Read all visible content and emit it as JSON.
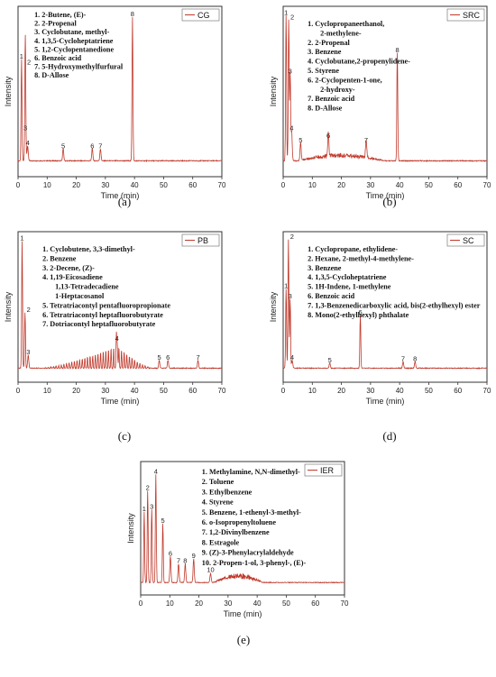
{
  "colors": {
    "trace": "#c0392b",
    "frame": "#333333"
  },
  "chart_data": [
    {
      "id": "a",
      "caption": "(a)",
      "legend": "CG",
      "type": "line",
      "xlabel": "Time (min)",
      "ylabel": "Intensity",
      "xlim": [
        0,
        70
      ],
      "xticks": [
        "0",
        "10",
        "20",
        "30",
        "40",
        "50",
        "60",
        "70"
      ],
      "compounds": [
        "1.  2-Butene, (E)-",
        "2.  2-Propenal",
        "3.  Cyclobutane, methyl-",
        "4.  1,3,5-Cycloheptatriene",
        "5.  1,2-Cyclopentanedione",
        "6.  Benzoic acid",
        "7.  5-Hydroxymethylfurfural",
        "8.  D-Allose"
      ],
      "peaks": [
        {
          "label": "1",
          "x": 1.2,
          "y": 0.68
        },
        {
          "label": "2",
          "x": 2.5,
          "y": 0.64
        },
        {
          "label": "3",
          "x": 2.5,
          "y": 0.2
        },
        {
          "label": "4",
          "x": 3.3,
          "y": 0.1
        },
        {
          "label": "5",
          "x": 15.5,
          "y": 0.08
        },
        {
          "label": "6",
          "x": 25.5,
          "y": 0.08
        },
        {
          "label": "7",
          "x": 28.3,
          "y": 0.08
        },
        {
          "label": "8",
          "x": 39.3,
          "y": 0.96
        }
      ],
      "bumps": []
    },
    {
      "id": "b",
      "caption": "(b)",
      "legend": "SRC",
      "type": "line",
      "xlabel": "Time (min)",
      "ylabel": "Intensity",
      "xlim": [
        0,
        70
      ],
      "xticks": [
        "0",
        "10",
        "20",
        "30",
        "40",
        "50",
        "60",
        "70"
      ],
      "compounds": [
        "1.  Cyclopropaneethanol,",
        "2-methylene-",
        "2.  2-Propenal",
        "3.  Benzene",
        "4.  Cyclobutane,2-propenylidene-",
        "5.  Styrene",
        "6.  2-Cyclopenten-1-one,",
        "2-hydroxy-",
        "7.  Benzoic acid",
        "8.  D-Allose"
      ],
      "peaks": [
        {
          "label": "1",
          "x": 1.0,
          "y": 0.97
        },
        {
          "label": "2",
          "x": 1.9,
          "y": 0.94
        },
        {
          "label": "3",
          "x": 2.4,
          "y": 0.58
        },
        {
          "label": "4",
          "x": 2.9,
          "y": 0.2
        },
        {
          "label": "5",
          "x": 6.0,
          "y": 0.12
        },
        {
          "label": "6",
          "x": 15.5,
          "y": 0.15
        },
        {
          "label": "7",
          "x": 28.5,
          "y": 0.12
        },
        {
          "label": "8",
          "x": 39.2,
          "y": 0.72
        }
      ],
      "bumps": [
        {
          "from": 5,
          "to": 35,
          "amp": 0.05
        }
      ]
    },
    {
      "id": "c",
      "caption": "(c)",
      "legend": "PB",
      "type": "line",
      "xlabel": "Time (min)",
      "ylabel": "Intensity",
      "xlim": [
        0,
        70
      ],
      "xticks": [
        "0",
        "10",
        "20",
        "30",
        "40",
        "50",
        "60",
        "70"
      ],
      "compounds": [
        "1.  Cyclobutene, 3,3-dimethyl-",
        "2.  Benzene",
        "3.  2-Decene, (Z)-",
        "4.  1,19-Eicosadiene",
        "1,13-Tetradecadiene",
        "1-Heptacosanol",
        "5.  Tetratriacontyl pentafluoropropionate",
        "6.  Tetratriacontyl heptafluorobutyrate",
        "7.  Dotriacontyl heptafluorobutyrate"
      ],
      "peaks": [
        {
          "label": "1",
          "x": 1.4,
          "y": 0.96
        },
        {
          "label": "2",
          "x": 2.4,
          "y": 0.42
        },
        {
          "label": "3",
          "x": 3.5,
          "y": 0.1
        },
        {
          "label": "4",
          "x": 34,
          "y": 0.2
        },
        {
          "label": "5",
          "x": 48.5,
          "y": 0.06
        },
        {
          "label": "6",
          "x": 51.5,
          "y": 0.06
        },
        {
          "label": "7",
          "x": 61.8,
          "y": 0.06
        }
      ],
      "bumps": [
        {
          "from": 8,
          "to": 46,
          "amp": 0.17,
          "center": 34,
          "comb": true
        }
      ]
    },
    {
      "id": "d",
      "caption": "(d)",
      "legend": "SC",
      "type": "line",
      "xlabel": "Time (min)",
      "ylabel": "Intensity",
      "xlim": [
        0,
        70
      ],
      "xticks": [
        "0",
        "10",
        "20",
        "30",
        "40",
        "50",
        "60",
        "70"
      ],
      "compounds": [
        "1.  Cyclopropane, ethylidene-",
        "2.  Hexane, 2-methyl-4-methylene-",
        "3.  Benzene",
        "4.  1,3,5-Cycloheptatriene",
        "5.  1H-Indene, 1-methylene",
        "6.  Benzoic acid",
        "7.  1,3-Benzenedicarboxylic acid, bis(2-ethylhexyl) ester",
        "8.  Mono(2-ethylhexyl) phthalate"
      ],
      "peaks": [
        {
          "label": "1",
          "x": 1.0,
          "y": 0.6
        },
        {
          "label": "2",
          "x": 1.8,
          "y": 0.97
        },
        {
          "label": "3",
          "x": 2.4,
          "y": 0.52
        },
        {
          "label": "4",
          "x": 3.1,
          "y": 0.06
        },
        {
          "label": "5",
          "x": 16,
          "y": 0.04
        },
        {
          "label": "6",
          "x": 26.5,
          "y": 0.4
        },
        {
          "label": "7",
          "x": 41.2,
          "y": 0.05
        },
        {
          "label": "8",
          "x": 45.3,
          "y": 0.05
        }
      ],
      "bumps": []
    },
    {
      "id": "e",
      "caption": "(e)",
      "legend": "IER",
      "type": "line",
      "xlabel": "Time (min)",
      "ylabel": "Intensity",
      "xlim": [
        0,
        70
      ],
      "xticks": [
        "0",
        "10",
        "20",
        "30",
        "40",
        "50",
        "60",
        "70"
      ],
      "compounds": [
        "1.  Methylamine, N,N-dimethyl-",
        "2.  Toluene",
        "3.  Ethylbenzene",
        "4.  Styrene",
        "5.  Benzene, 1-ethenyl-3-methyl-",
        "6.  o-Isopropenyltoluene",
        "7.  1,2-Divinylbenzene",
        "8.  Estragole",
        "9.  (Z)-3-Phenylacrylaldehyde",
        "10.  2-Propen-1-ol, 3-phenyl-, (E)-"
      ],
      "peaks": [
        {
          "label": "1",
          "x": 1.2,
          "y": 0.6
        },
        {
          "label": "2",
          "x": 2.4,
          "y": 0.78
        },
        {
          "label": "3",
          "x": 3.8,
          "y": 0.62
        },
        {
          "label": "4",
          "x": 5.2,
          "y": 0.92
        },
        {
          "label": "5",
          "x": 7.6,
          "y": 0.5
        },
        {
          "label": "6",
          "x": 10.2,
          "y": 0.22
        },
        {
          "label": "7",
          "x": 13.0,
          "y": 0.16
        },
        {
          "label": "8",
          "x": 15.3,
          "y": 0.16
        },
        {
          "label": "9",
          "x": 18.2,
          "y": 0.2
        },
        {
          "label": "10",
          "x": 24.0,
          "y": 0.08
        }
      ],
      "bumps": [
        {
          "from": 25,
          "to": 42,
          "amp": 0.08
        }
      ]
    }
  ]
}
